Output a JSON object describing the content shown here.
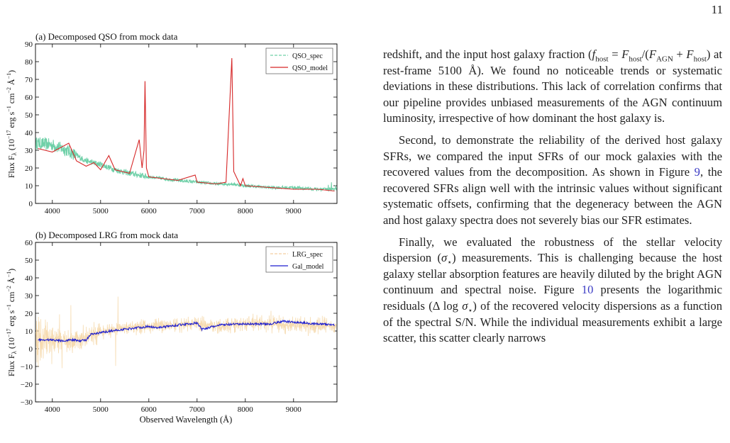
{
  "page_number": "11",
  "panel_a": {
    "title": "(a) Decomposed QSO from mock data",
    "ylabel": "Flux F_λ (10^-17 erg s^-1 cm^-2 Å^-1)",
    "legend": [
      "QSO_spec",
      "QSO_model"
    ],
    "x_ticks": [
      "4000",
      "5000",
      "6000",
      "7000",
      "8000",
      "9000"
    ],
    "y_ticks": [
      "0",
      "10",
      "20",
      "30",
      "40",
      "50",
      "60",
      "70",
      "80",
      "90"
    ]
  },
  "panel_b": {
    "title": "(b) Decomposed LRG from mock data",
    "ylabel": "Flux F_λ (10^-17 erg s^-1 cm^-2 Å^-1)",
    "xlabel": "Observed Wavelength (Å)",
    "legend": [
      "LRG_spec",
      "Gal_model"
    ],
    "x_ticks": [
      "4000",
      "5000",
      "6000",
      "7000",
      "8000",
      "9000"
    ],
    "y_ticks": [
      "−30",
      "−20",
      "−10",
      "0",
      "10",
      "20",
      "30",
      "40",
      "50",
      "60"
    ]
  },
  "colors": {
    "qso_spec": "#6fd0a8",
    "qso_model": "#d62728",
    "lrg_spec": "#f6dbb0",
    "gal_model": "#1f1fcf"
  },
  "chart_data": [
    {
      "type": "line",
      "title": "(a) Decomposed QSO from mock data",
      "xlabel": "",
      "ylabel": "Flux F_λ (10^-17 erg s^-1 cm^-2 Å^-1)",
      "xlim": [
        3650,
        9900
      ],
      "ylim": [
        0,
        90
      ],
      "legend_position": "top-right",
      "series": [
        {
          "name": "QSO_spec",
          "x": [
            3700,
            4000,
            4300,
            4500,
            4700,
            5000,
            5300,
            5600,
            5800,
            6000,
            6300,
            6600,
            7000,
            7400,
            7700,
            8000,
            8500,
            9000,
            9500,
            9850
          ],
          "y": [
            34,
            33,
            30,
            27,
            24,
            22,
            19,
            17,
            16,
            15,
            14,
            13,
            12,
            11,
            11,
            10,
            9,
            9,
            8,
            8
          ]
        },
        {
          "name": "QSO_model",
          "x": [
            3700,
            4000,
            4340,
            4500,
            4700,
            4860,
            5000,
            5170,
            5300,
            5600,
            5800,
            5860,
            5900,
            5920,
            5950,
            6000,
            6300,
            6600,
            6960,
            7000,
            7400,
            7600,
            7720,
            7760,
            7900,
            7950,
            8000,
            8500,
            9000,
            9500,
            9850
          ],
          "y": [
            31,
            29,
            34,
            24,
            21,
            23,
            19,
            27,
            19,
            17,
            36,
            20,
            30,
            69,
            20,
            15,
            14,
            13,
            16,
            12,
            11,
            12,
            82,
            18,
            10,
            14,
            10,
            9,
            8,
            8,
            7
          ]
        }
      ]
    },
    {
      "type": "line",
      "title": "(b) Decomposed LRG from mock data",
      "xlabel": "Observed Wavelength (Å)",
      "ylabel": "Flux F_λ (10^-17 erg s^-1 cm^-2 Å^-1)",
      "xlim": [
        3650,
        9900
      ],
      "ylim": [
        -30,
        60
      ],
      "legend_position": "top-right",
      "series": [
        {
          "name": "LRG_spec",
          "x": [
            3700,
            4000,
            4400,
            4700,
            4800,
            5000,
            5500,
            6000,
            6500,
            7000,
            7500,
            8000,
            8500,
            9000,
            9500,
            9850
          ],
          "y": [
            5,
            5,
            5,
            5,
            8,
            9,
            12,
            13,
            13,
            14,
            13,
            14,
            14,
            13,
            13,
            13
          ]
        },
        {
          "name": "Gal_model",
          "x": [
            3700,
            4000,
            4200,
            4400,
            4600,
            4700,
            4800,
            5000,
            5200,
            5500,
            5800,
            6000,
            6200,
            6500,
            6800,
            7000,
            7100,
            7500,
            8000,
            8500,
            8800,
            9000,
            9500,
            9850
          ],
          "y": [
            5,
            5,
            4.5,
            5,
            4.5,
            5,
            8,
            9,
            10,
            11,
            12,
            12.5,
            12,
            13,
            14,
            14.5,
            11,
            13.5,
            14,
            14,
            15.5,
            15,
            14,
            13.5
          ]
        }
      ]
    }
  ],
  "body": {
    "p1": "redshift, and the input host galaxy fraction (f_host = F_host/(F_AGN + F_host) at rest-frame 5100 Å). We found no noticeable trends or systematic deviations in these distributions. This lack of correlation confirms that our pipeline provides unbiased measurements of the AGN continuum luminosity, irrespective of how dominant the host galaxy is.",
    "p2": "Second, to demonstrate the reliability of the derived host galaxy SFRs, we compared the input SFRs of our mock galaxies with the recovered values from the decomposition. As shown in Figure 9, the recovered SFRs align well with the intrinsic values without significant systematic offsets, confirming that the degeneracy between the AGN and host galaxy spectra does not severely bias our SFR estimates.",
    "p3": "Finally, we evaluated the robustness of the stellar velocity dispersion (σ⋆) measurements. This is challenging because the host galaxy stellar absorption features are heavily diluted by the bright AGN continuum and spectral noise. Figure 10 presents the logarithmic residuals (Δ log σ⋆) of the recovered velocity dispersions as a function of the spectral S/N. While the individual measurements exhibit a large scatter, this scatter clearly narrows"
  }
}
